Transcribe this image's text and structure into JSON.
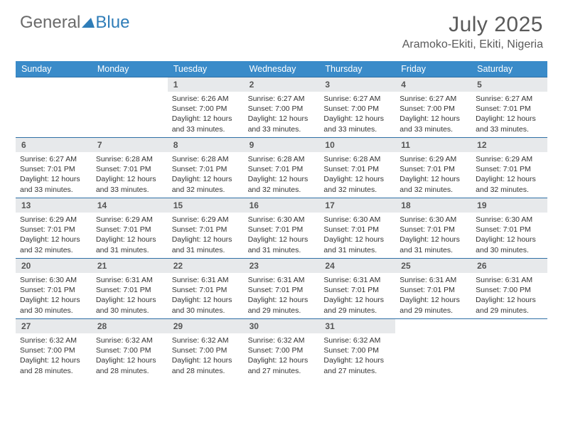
{
  "colors": {
    "header_bar": "#3a8bc9",
    "week_border": "#2f6fa5",
    "daynum_bg": "#e7e9eb",
    "text_gray": "#5a5a5a",
    "logo_gray": "#6a6a6a",
    "logo_blue": "#2f7db8",
    "triangle": "#2f7db8"
  },
  "logo": {
    "part1": "General",
    "part2": "Blue"
  },
  "title": "July 2025",
  "location": "Aramoko-Ekiti, Ekiti, Nigeria",
  "weekdays": [
    "Sunday",
    "Monday",
    "Tuesday",
    "Wednesday",
    "Thursday",
    "Friday",
    "Saturday"
  ],
  "weeks": [
    [
      {
        "n": "",
        "sr": "",
        "ss": "",
        "dl": ""
      },
      {
        "n": "",
        "sr": "",
        "ss": "",
        "dl": ""
      },
      {
        "n": "1",
        "sr": "Sunrise: 6:26 AM",
        "ss": "Sunset: 7:00 PM",
        "dl": "Daylight: 12 hours and 33 minutes."
      },
      {
        "n": "2",
        "sr": "Sunrise: 6:27 AM",
        "ss": "Sunset: 7:00 PM",
        "dl": "Daylight: 12 hours and 33 minutes."
      },
      {
        "n": "3",
        "sr": "Sunrise: 6:27 AM",
        "ss": "Sunset: 7:00 PM",
        "dl": "Daylight: 12 hours and 33 minutes."
      },
      {
        "n": "4",
        "sr": "Sunrise: 6:27 AM",
        "ss": "Sunset: 7:00 PM",
        "dl": "Daylight: 12 hours and 33 minutes."
      },
      {
        "n": "5",
        "sr": "Sunrise: 6:27 AM",
        "ss": "Sunset: 7:01 PM",
        "dl": "Daylight: 12 hours and 33 minutes."
      }
    ],
    [
      {
        "n": "6",
        "sr": "Sunrise: 6:27 AM",
        "ss": "Sunset: 7:01 PM",
        "dl": "Daylight: 12 hours and 33 minutes."
      },
      {
        "n": "7",
        "sr": "Sunrise: 6:28 AM",
        "ss": "Sunset: 7:01 PM",
        "dl": "Daylight: 12 hours and 33 minutes."
      },
      {
        "n": "8",
        "sr": "Sunrise: 6:28 AM",
        "ss": "Sunset: 7:01 PM",
        "dl": "Daylight: 12 hours and 32 minutes."
      },
      {
        "n": "9",
        "sr": "Sunrise: 6:28 AM",
        "ss": "Sunset: 7:01 PM",
        "dl": "Daylight: 12 hours and 32 minutes."
      },
      {
        "n": "10",
        "sr": "Sunrise: 6:28 AM",
        "ss": "Sunset: 7:01 PM",
        "dl": "Daylight: 12 hours and 32 minutes."
      },
      {
        "n": "11",
        "sr": "Sunrise: 6:29 AM",
        "ss": "Sunset: 7:01 PM",
        "dl": "Daylight: 12 hours and 32 minutes."
      },
      {
        "n": "12",
        "sr": "Sunrise: 6:29 AM",
        "ss": "Sunset: 7:01 PM",
        "dl": "Daylight: 12 hours and 32 minutes."
      }
    ],
    [
      {
        "n": "13",
        "sr": "Sunrise: 6:29 AM",
        "ss": "Sunset: 7:01 PM",
        "dl": "Daylight: 12 hours and 32 minutes."
      },
      {
        "n": "14",
        "sr": "Sunrise: 6:29 AM",
        "ss": "Sunset: 7:01 PM",
        "dl": "Daylight: 12 hours and 31 minutes."
      },
      {
        "n": "15",
        "sr": "Sunrise: 6:29 AM",
        "ss": "Sunset: 7:01 PM",
        "dl": "Daylight: 12 hours and 31 minutes."
      },
      {
        "n": "16",
        "sr": "Sunrise: 6:30 AM",
        "ss": "Sunset: 7:01 PM",
        "dl": "Daylight: 12 hours and 31 minutes."
      },
      {
        "n": "17",
        "sr": "Sunrise: 6:30 AM",
        "ss": "Sunset: 7:01 PM",
        "dl": "Daylight: 12 hours and 31 minutes."
      },
      {
        "n": "18",
        "sr": "Sunrise: 6:30 AM",
        "ss": "Sunset: 7:01 PM",
        "dl": "Daylight: 12 hours and 31 minutes."
      },
      {
        "n": "19",
        "sr": "Sunrise: 6:30 AM",
        "ss": "Sunset: 7:01 PM",
        "dl": "Daylight: 12 hours and 30 minutes."
      }
    ],
    [
      {
        "n": "20",
        "sr": "Sunrise: 6:30 AM",
        "ss": "Sunset: 7:01 PM",
        "dl": "Daylight: 12 hours and 30 minutes."
      },
      {
        "n": "21",
        "sr": "Sunrise: 6:31 AM",
        "ss": "Sunset: 7:01 PM",
        "dl": "Daylight: 12 hours and 30 minutes."
      },
      {
        "n": "22",
        "sr": "Sunrise: 6:31 AM",
        "ss": "Sunset: 7:01 PM",
        "dl": "Daylight: 12 hours and 30 minutes."
      },
      {
        "n": "23",
        "sr": "Sunrise: 6:31 AM",
        "ss": "Sunset: 7:01 PM",
        "dl": "Daylight: 12 hours and 29 minutes."
      },
      {
        "n": "24",
        "sr": "Sunrise: 6:31 AM",
        "ss": "Sunset: 7:01 PM",
        "dl": "Daylight: 12 hours and 29 minutes."
      },
      {
        "n": "25",
        "sr": "Sunrise: 6:31 AM",
        "ss": "Sunset: 7:01 PM",
        "dl": "Daylight: 12 hours and 29 minutes."
      },
      {
        "n": "26",
        "sr": "Sunrise: 6:31 AM",
        "ss": "Sunset: 7:00 PM",
        "dl": "Daylight: 12 hours and 29 minutes."
      }
    ],
    [
      {
        "n": "27",
        "sr": "Sunrise: 6:32 AM",
        "ss": "Sunset: 7:00 PM",
        "dl": "Daylight: 12 hours and 28 minutes."
      },
      {
        "n": "28",
        "sr": "Sunrise: 6:32 AM",
        "ss": "Sunset: 7:00 PM",
        "dl": "Daylight: 12 hours and 28 minutes."
      },
      {
        "n": "29",
        "sr": "Sunrise: 6:32 AM",
        "ss": "Sunset: 7:00 PM",
        "dl": "Daylight: 12 hours and 28 minutes."
      },
      {
        "n": "30",
        "sr": "Sunrise: 6:32 AM",
        "ss": "Sunset: 7:00 PM",
        "dl": "Daylight: 12 hours and 27 minutes."
      },
      {
        "n": "31",
        "sr": "Sunrise: 6:32 AM",
        "ss": "Sunset: 7:00 PM",
        "dl": "Daylight: 12 hours and 27 minutes."
      },
      {
        "n": "",
        "sr": "",
        "ss": "",
        "dl": ""
      },
      {
        "n": "",
        "sr": "",
        "ss": "",
        "dl": ""
      }
    ]
  ]
}
